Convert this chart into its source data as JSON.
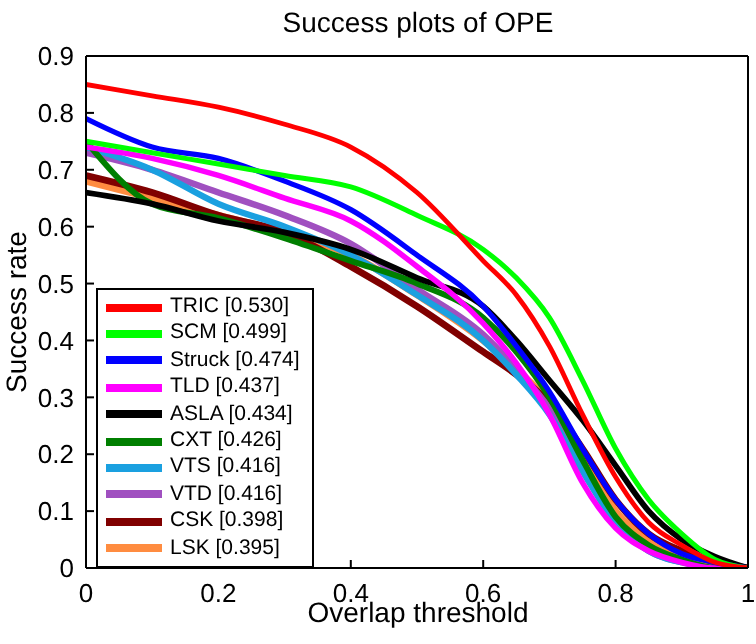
{
  "chart_data": {
    "type": "line",
    "title": "Success plots of OPE",
    "xlabel": "Overlap threshold",
    "ylabel": "Success rate",
    "x": [
      0,
      0.1,
      0.2,
      0.3,
      0.4,
      0.5,
      0.6,
      0.65,
      0.7,
      0.75,
      0.8,
      0.85,
      0.9,
      0.95,
      1
    ],
    "xlim": [
      0,
      1
    ],
    "xticks": [
      0,
      0.2,
      0.4,
      0.6,
      0.8,
      1
    ],
    "ylim": [
      0,
      0.9
    ],
    "yticks": [
      0,
      0.1,
      0.2,
      0.3,
      0.4,
      0.5,
      0.6,
      0.7,
      0.8,
      0.9
    ],
    "grid": false,
    "legend": "bottom left",
    "marker": "none",
    "line_style": "solid",
    "series": [
      {
        "name": "TRIC [0.530]",
        "color": "#ff0000",
        "values": [
          0.85,
          0.83,
          0.81,
          0.78,
          0.74,
          0.66,
          0.54,
          0.48,
          0.39,
          0.27,
          0.16,
          0.08,
          0.04,
          0.01,
          0
        ]
      },
      {
        "name": "SCM [0.499]",
        "color": "#00ff00",
        "values": [
          0.75,
          0.73,
          0.71,
          0.69,
          0.67,
          0.62,
          0.56,
          0.51,
          0.44,
          0.33,
          0.21,
          0.12,
          0.06,
          0.015,
          0
        ]
      },
      {
        "name": "Struck [0.474]",
        "color": "#0000ff",
        "values": [
          0.79,
          0.74,
          0.72,
          0.68,
          0.63,
          0.55,
          0.46,
          0.39,
          0.31,
          0.21,
          0.12,
          0.06,
          0.025,
          0.01,
          0
        ]
      },
      {
        "name": "TLD [0.437]",
        "color": "#ff00ff",
        "values": [
          0.74,
          0.72,
          0.69,
          0.65,
          0.61,
          0.53,
          0.43,
          0.36,
          0.27,
          0.15,
          0.07,
          0.03,
          0.01,
          0,
          0
        ]
      },
      {
        "name": "ASLA [0.434]",
        "color": "#000000",
        "values": [
          0.66,
          0.64,
          0.61,
          0.59,
          0.56,
          0.51,
          0.46,
          0.4,
          0.33,
          0.26,
          0.18,
          0.1,
          0.05,
          0.02,
          0
        ]
      },
      {
        "name": "CXT [0.426]",
        "color": "#007f00",
        "values": [
          0.75,
          0.64,
          0.615,
          0.58,
          0.54,
          0.5,
          0.44,
          0.38,
          0.3,
          0.19,
          0.09,
          0.04,
          0.015,
          0,
          0
        ]
      },
      {
        "name": "VTS [0.416]",
        "color": "#1aa0e0",
        "values": [
          0.74,
          0.7,
          0.64,
          0.6,
          0.55,
          0.48,
          0.4,
          0.34,
          0.27,
          0.17,
          0.08,
          0.03,
          0.01,
          null,
          null
        ]
      },
      {
        "name": "VTD [0.416]",
        "color": "#a050c0",
        "values": [
          0.73,
          0.7,
          0.66,
          0.62,
          0.57,
          0.49,
          0.41,
          0.35,
          0.28,
          0.18,
          0.08,
          0.03,
          0.01,
          0,
          0
        ]
      },
      {
        "name": "CSK [0.398]",
        "color": "#800000",
        "values": [
          0.69,
          0.66,
          0.62,
          0.59,
          0.53,
          0.46,
          0.38,
          0.34,
          0.29,
          0.21,
          0.12,
          0.06,
          0.03,
          0.01,
          0
        ]
      },
      {
        "name": "LSK [0.395]",
        "color": "#ff8c40",
        "values": [
          0.68,
          0.65,
          0.62,
          0.59,
          0.55,
          0.48,
          0.4,
          0.35,
          0.29,
          0.2,
          0.1,
          0.05,
          0.02,
          0.005,
          0
        ]
      }
    ]
  }
}
